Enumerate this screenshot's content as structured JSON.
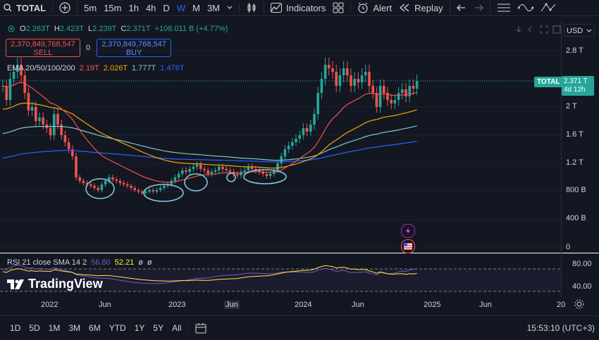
{
  "toolbar": {
    "symbol": "TOTAL",
    "intervals": [
      "5m",
      "15m",
      "1h",
      "4h",
      "D",
      "W",
      "M",
      "3M"
    ],
    "active_interval": "W",
    "indicators_label": "Indicators",
    "alert_label": "Alert",
    "replay_label": "Replay"
  },
  "legend": {
    "o_label": "O",
    "o_value": "2.263T",
    "h_label": "H",
    "h_value": "2.423T",
    "l_label": "L",
    "l_value": "2.239T",
    "c_label": "C",
    "c_value": "2.371T",
    "change": "+108.011 B (+4.77%)"
  },
  "trade": {
    "sell_price": "2,370,849,768,547",
    "sell_label": "SELL",
    "spread": "0",
    "buy_price": "2,370,849,768,547",
    "buy_label": "BUY"
  },
  "ema": {
    "label": "EMA 20/50/100/200",
    "v20": "2.19T",
    "v50": "2.026T",
    "v100": "1.777T",
    "v200": "1.476T"
  },
  "rsi": {
    "label": "RSI 21 close SMA 14 2",
    "v1": "56.80",
    "v2": "52.21",
    "v3": "ø",
    "v4": "ø"
  },
  "price_axis": {
    "currency": "USD",
    "labels": [
      "2.8 T",
      "2 T",
      "1.6 T",
      "1.2 T",
      "800 B",
      "400 B",
      "0"
    ],
    "total_tag": "TOTAL",
    "last_price": "2.371 T",
    "countdown": "4d 12h",
    "rsi_labels": [
      "80.00",
      "40.00"
    ]
  },
  "time_axis": {
    "labels": [
      "2022",
      "Jun",
      "2023",
      "Jun",
      "2024",
      "Jun",
      "2025",
      "Jun",
      "20"
    ]
  },
  "bottom": {
    "ranges": [
      "1D",
      "5D",
      "1M",
      "3M",
      "6M",
      "YTD",
      "1Y",
      "5Y",
      "All"
    ],
    "clock": "15:53:10 (UTC+3)"
  },
  "brand": {
    "name": "TradingView"
  },
  "colors": {
    "up": "#26a69a",
    "down": "#ef5350",
    "ema20": "#ef5350",
    "ema50": "#f7a600",
    "ema100": "#80cbc4",
    "ema200": "#2962ff",
    "annotation": "#7ec8e3",
    "rsi": "#7e57c2",
    "rsi_sma": "#ffeb3b"
  }
}
